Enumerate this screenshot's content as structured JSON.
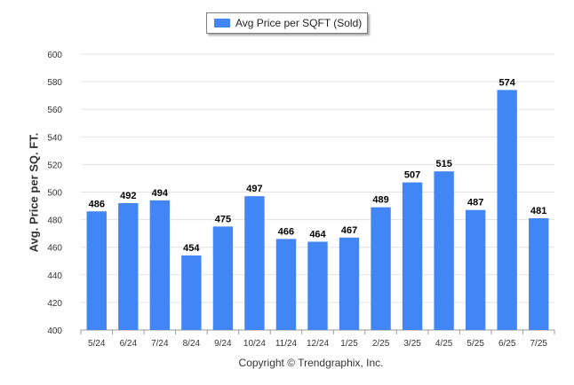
{
  "chart_data": {
    "type": "bar",
    "title": "",
    "xlabel": "",
    "ylabel": "Avg. Price per SQ. FT.",
    "categories": [
      "5/24",
      "6/24",
      "7/24",
      "8/24",
      "9/24",
      "10/24",
      "11/24",
      "12/24",
      "1/25",
      "2/25",
      "3/25",
      "4/25",
      "5/25",
      "6/25",
      "7/25"
    ],
    "series": [
      {
        "name": "Avg Price per SQFT (Sold)",
        "values": [
          486,
          492,
          494,
          454,
          475,
          497,
          466,
          464,
          467,
          489,
          507,
          515,
          487,
          574,
          481
        ],
        "color": "#4285f4"
      }
    ],
    "ylim": [
      400,
      600
    ],
    "yticks": [
      400,
      420,
      440,
      460,
      480,
      500,
      520,
      540,
      560,
      580,
      600
    ],
    "grid": true,
    "legend_position": "top-center",
    "data_labels": true
  },
  "footer": {
    "copyright": "Copyright © Trendgraphix, Inc."
  }
}
